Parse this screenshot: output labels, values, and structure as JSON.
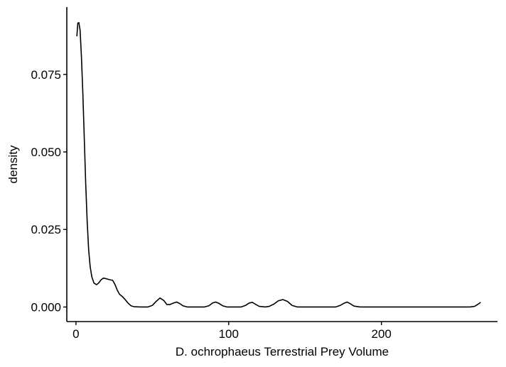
{
  "chart_data": {
    "type": "line",
    "title": "",
    "xlabel": "D. ochrophaeus Terrestrial Prey Volume",
    "ylabel": "density",
    "xlim": [
      -6,
      276
    ],
    "ylim": [
      -0.0047,
      0.0967
    ],
    "x_ticks": [
      0,
      100,
      200
    ],
    "x_tick_labels": [
      "0",
      "100",
      "200"
    ],
    "y_ticks": [
      0.0,
      0.025,
      0.05,
      0.075
    ],
    "y_tick_labels": [
      "0.000",
      "0.025",
      "0.050",
      "0.075"
    ],
    "grid": false,
    "legend": "none",
    "series": [
      {
        "color": "#000000",
        "points": [
          [
            0.6,
            0.0873
          ],
          [
            1.2,
            0.0915
          ],
          [
            1.9,
            0.0917
          ],
          [
            2.7,
            0.0892
          ],
          [
            3.6,
            0.0805
          ],
          [
            4.5,
            0.069
          ],
          [
            5.5,
            0.0535
          ],
          [
            6.4,
            0.0395
          ],
          [
            7.3,
            0.028
          ],
          [
            8.3,
            0.0185
          ],
          [
            9.3,
            0.013
          ],
          [
            10.4,
            0.0097
          ],
          [
            11.8,
            0.0077
          ],
          [
            13.5,
            0.0072
          ],
          [
            15.0,
            0.0078
          ],
          [
            16.5,
            0.0088
          ],
          [
            18.0,
            0.0093
          ],
          [
            20.0,
            0.0091
          ],
          [
            22.0,
            0.0088
          ],
          [
            24.0,
            0.0086
          ],
          [
            25.5,
            0.0073
          ],
          [
            27.0,
            0.0055
          ],
          [
            28.5,
            0.0041
          ],
          [
            30.5,
            0.0033
          ],
          [
            32.0,
            0.0025
          ],
          [
            34.0,
            0.0013
          ],
          [
            36.0,
            0.0004
          ],
          [
            38.0,
            0.0001
          ],
          [
            42.0,
            0.0
          ],
          [
            47.0,
            0.0
          ],
          [
            50.0,
            0.0005
          ],
          [
            52.5,
            0.0018
          ],
          [
            55.0,
            0.0029
          ],
          [
            57.5,
            0.0021
          ],
          [
            59.5,
            0.0008
          ],
          [
            61.5,
            0.0008
          ],
          [
            64.0,
            0.0013
          ],
          [
            66.0,
            0.0016
          ],
          [
            68.0,
            0.0011
          ],
          [
            70.0,
            0.0004
          ],
          [
            73.0,
            0.0
          ],
          [
            84.0,
            0.0
          ],
          [
            87.0,
            0.0004
          ],
          [
            89.5,
            0.0013
          ],
          [
            91.5,
            0.0016
          ],
          [
            93.5,
            0.0012
          ],
          [
            96.0,
            0.0004
          ],
          [
            99.0,
            0.0
          ],
          [
            108.0,
            0.0
          ],
          [
            111.0,
            0.0005
          ],
          [
            113.5,
            0.0013
          ],
          [
            115.5,
            0.0015
          ],
          [
            117.5,
            0.0009
          ],
          [
            120.0,
            0.0002
          ],
          [
            124.0,
            0.0
          ],
          [
            126.5,
            0.0002
          ],
          [
            129.5,
            0.0009
          ],
          [
            132.5,
            0.002
          ],
          [
            135.5,
            0.0024
          ],
          [
            138.5,
            0.0018
          ],
          [
            141.5,
            0.0005
          ],
          [
            145.0,
            0.0
          ],
          [
            170.0,
            0.0
          ],
          [
            173.0,
            0.0005
          ],
          [
            175.5,
            0.0012
          ],
          [
            177.5,
            0.0016
          ],
          [
            179.5,
            0.0011
          ],
          [
            182.0,
            0.0003
          ],
          [
            186.0,
            0.0
          ],
          [
            258.0,
            0.0
          ],
          [
            261.0,
            0.0002
          ],
          [
            263.0,
            0.0008
          ],
          [
            265.0,
            0.0015
          ]
        ]
      }
    ]
  }
}
